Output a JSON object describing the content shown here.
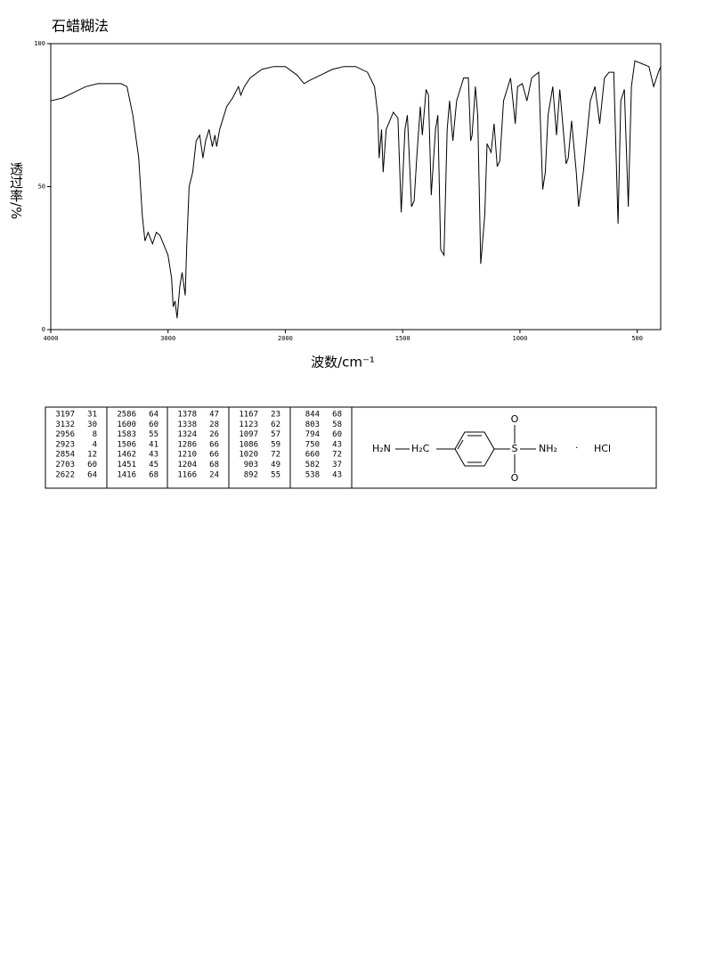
{
  "chart_data": {
    "type": "line",
    "title": "石蜡糊法",
    "xlabel": "波数/cm⁻¹",
    "ylabel": "透过率/%",
    "xlim": [
      4000,
      400
    ],
    "ylim": [
      0,
      100
    ],
    "xticks": [
      4000,
      3000,
      2000,
      1500,
      1000,
      500
    ],
    "yticks": [
      0,
      50,
      100
    ],
    "x_ticks_evenly_spaced": true,
    "color": "#000000",
    "x": [
      4000,
      3900,
      3800,
      3700,
      3600,
      3500,
      3400,
      3350,
      3300,
      3250,
      3220,
      3197,
      3170,
      3132,
      3100,
      3070,
      3040,
      3000,
      2970,
      2956,
      2940,
      2923,
      2900,
      2880,
      2854,
      2840,
      2820,
      2790,
      2760,
      2730,
      2703,
      2680,
      2650,
      2622,
      2600,
      2586,
      2560,
      2500,
      2450,
      2400,
      2380,
      2350,
      2300,
      2200,
      2100,
      2000,
      1950,
      1920,
      1900,
      1850,
      1800,
      1750,
      1700,
      1650,
      1620,
      1606,
      1600,
      1590,
      1583,
      1570,
      1540,
      1520,
      1506,
      1490,
      1480,
      1462,
      1451,
      1440,
      1425,
      1416,
      1400,
      1390,
      1378,
      1360,
      1350,
      1338,
      1324,
      1310,
      1300,
      1286,
      1270,
      1240,
      1220,
      1210,
      1204,
      1190,
      1180,
      1167,
      1166,
      1150,
      1140,
      1123,
      1110,
      1097,
      1086,
      1070,
      1040,
      1020,
      1010,
      990,
      970,
      950,
      920,
      903,
      892,
      880,
      860,
      844,
      830,
      803,
      794,
      780,
      760,
      750,
      730,
      700,
      680,
      660,
      640,
      620,
      600,
      582,
      570,
      555,
      538,
      525,
      510,
      480,
      450,
      430,
      410,
      400
    ],
    "values": [
      80,
      81,
      83,
      85,
      86,
      86,
      86,
      85,
      75,
      60,
      40,
      31,
      34,
      30,
      34,
      33,
      30,
      26,
      18,
      8,
      10,
      4,
      15,
      20,
      12,
      30,
      50,
      55,
      66,
      68,
      60,
      66,
      70,
      64,
      68,
      64,
      70,
      78,
      81,
      85,
      82,
      85,
      88,
      91,
      92,
      92,
      89,
      86,
      87,
      89,
      91,
      92,
      92,
      90,
      85,
      75,
      60,
      70,
      55,
      70,
      76,
      74,
      41,
      70,
      75,
      43,
      45,
      60,
      78,
      68,
      84,
      82,
      47,
      70,
      75,
      28,
      26,
      70,
      80,
      66,
      80,
      88,
      88,
      66,
      68,
      85,
      75,
      23,
      24,
      40,
      65,
      62,
      72,
      57,
      59,
      80,
      88,
      72,
      85,
      86,
      80,
      88,
      90,
      49,
      55,
      75,
      85,
      68,
      84,
      58,
      60,
      73,
      55,
      43,
      55,
      80,
      85,
      72,
      88,
      90,
      90,
      37,
      80,
      84,
      43,
      85,
      94,
      93,
      92,
      85,
      90,
      92
    ]
  },
  "peak_table": {
    "rows": [
      [
        3197,
        31
      ],
      [
        3132,
        30
      ],
      [
        2956,
        8
      ],
      [
        2923,
        4
      ],
      [
        2854,
        12
      ],
      [
        2703,
        60
      ],
      [
        2622,
        64
      ],
      [
        2586,
        64
      ],
      [
        1600,
        60
      ],
      [
        1583,
        55
      ],
      [
        1506,
        41
      ],
      [
        1462,
        43
      ],
      [
        1451,
        45
      ],
      [
        1416,
        68
      ],
      [
        1378,
        47
      ],
      [
        1338,
        28
      ],
      [
        1324,
        26
      ],
      [
        1286,
        66
      ],
      [
        1210,
        66
      ],
      [
        1204,
        68
      ],
      [
        1166,
        24
      ],
      [
        1167,
        23
      ],
      [
        1123,
        62
      ],
      [
        1097,
        57
      ],
      [
        1086,
        59
      ],
      [
        1020,
        72
      ],
      [
        903,
        49
      ],
      [
        892,
        55
      ],
      [
        844,
        68
      ],
      [
        803,
        58
      ],
      [
        794,
        60
      ],
      [
        750,
        43
      ],
      [
        660,
        72
      ],
      [
        582,
        37
      ],
      [
        538,
        43
      ]
    ]
  },
  "structure": {
    "amine": "H₂N",
    "methylene": "H₂C",
    "sulfur": "S",
    "oxygen_top": "O",
    "oxygen_bottom": "O",
    "amide": "NH₂",
    "dot": "·",
    "salt": "HCl"
  }
}
